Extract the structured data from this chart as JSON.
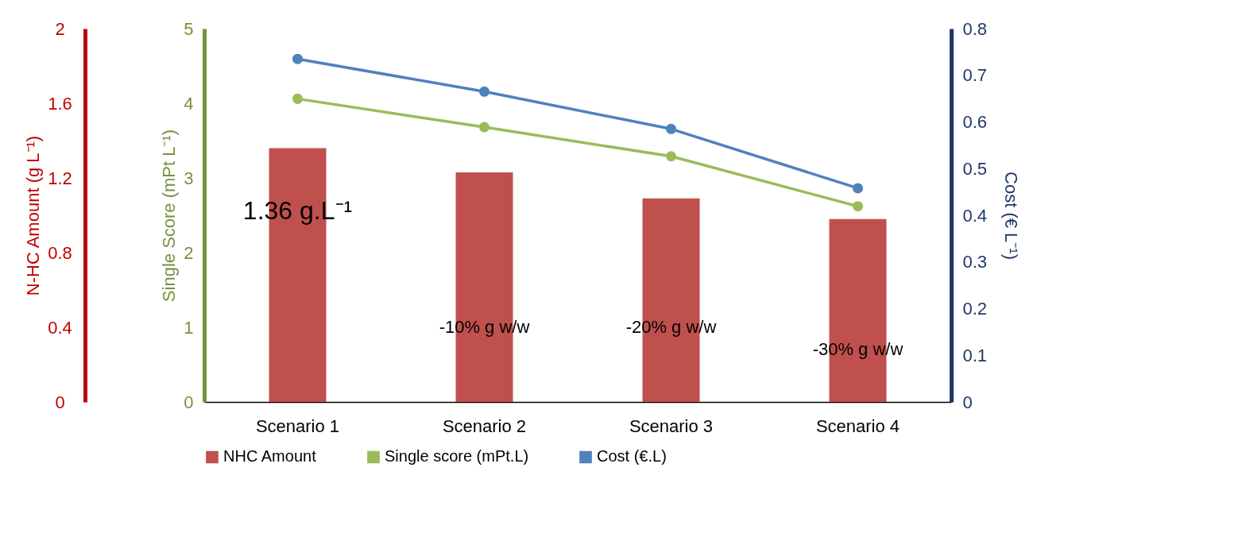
{
  "chart_data": {
    "type": "bar",
    "categories": [
      "Scenario 1",
      "Scenario 2",
      "Scenario 3",
      "Scenario 4"
    ],
    "series": [
      {
        "name": "NHC Amount",
        "axis": "y3",
        "color": "#c0504d",
        "values": [
          1.36,
          1.23,
          1.09,
          0.98
        ]
      },
      {
        "name": "Single score (mPt.L)",
        "type": "line",
        "color": "#9bbb59",
        "values": [
          4.06,
          3.68,
          3.29,
          2.62
        ]
      },
      {
        "name": "Cost (€.L)",
        "type": "line",
        "axis": "y2",
        "color": "#4f81bd",
        "values": [
          0.735,
          0.665,
          0.585,
          0.458
        ]
      }
    ],
    "y3label": "N-HC Amount (g L⁻¹)",
    "y3lim": [
      0,
      2
    ],
    "y3ticks": [
      0,
      0.4,
      0.8,
      1.2,
      1.6,
      2
    ],
    "ylabel": "Single Score (mPt L⁻¹)",
    "ylim": [
      0,
      5
    ],
    "yticks": [
      0,
      1,
      2,
      3,
      4,
      5
    ],
    "y2label": "Cost (€ L⁻¹)",
    "y2lim": [
      0,
      0.8
    ],
    "y2ticks": [
      0,
      0.1,
      0.2,
      0.3,
      0.4,
      0.5,
      0.6,
      0.7,
      0.8
    ],
    "annotations": [
      "1.36 g.L⁻¹",
      "-10% g w/w",
      "-20% g w/w",
      "-30% g w/w"
    ],
    "marker": "circle",
    "grid": false,
    "legend": "bottom"
  }
}
